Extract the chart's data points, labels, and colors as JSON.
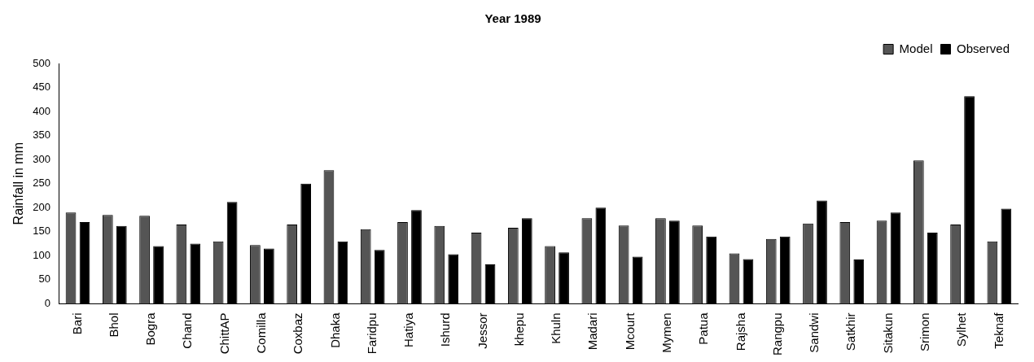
{
  "chart_data": {
    "type": "bar",
    "title": "Year 1989",
    "ylabel": "Rainfall in mm",
    "categories": [
      "Bari",
      "Bhol",
      "Bogra",
      "Chand",
      "ChittAP",
      "Comilla",
      "Coxbaz",
      "Dhaka",
      "Faridpu",
      "Hatiya",
      "Ishurd",
      "Jessor",
      "khepu",
      "Khuln",
      "Madari",
      "Mcourt",
      "Mymen",
      "Patua",
      "Rajsha",
      "Rangpu",
      "Sandwi",
      "Satkhir",
      "Sitakun",
      "Srimon",
      "Sylhet",
      "Teknaf"
    ],
    "series": [
      {
        "name": "Model",
        "color": "#555555",
        "values": [
          190,
          185,
          183,
          165,
          130,
          122,
          165,
          278,
          155,
          170,
          162,
          148,
          158,
          120,
          178,
          163,
          178,
          163,
          105,
          135,
          167,
          170,
          173,
          298,
          165,
          130
        ]
      },
      {
        "name": "Observed",
        "color": "#000000",
        "values": [
          170,
          162,
          120,
          125,
          212,
          115,
          250,
          130,
          112,
          195,
          103,
          82,
          178,
          107,
          200,
          98,
          173,
          140,
          93,
          140,
          215,
          92,
          190,
          148,
          432,
          198
        ]
      }
    ],
    "ylim": [
      0,
      500
    ],
    "yticks": [
      0,
      50,
      100,
      150,
      200,
      250,
      300,
      350,
      400,
      450,
      500
    ],
    "grid": false,
    "legend": "top right"
  }
}
